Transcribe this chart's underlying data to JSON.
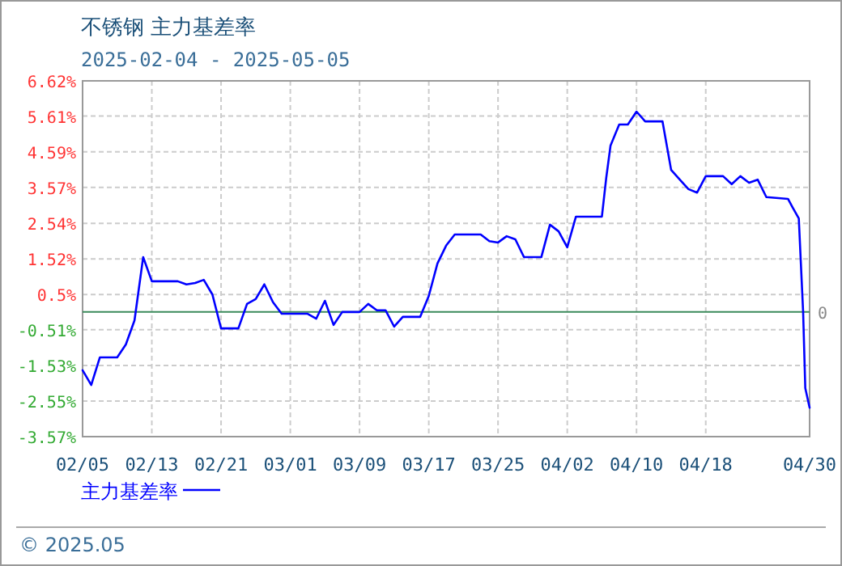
{
  "chart_data": {
    "type": "line",
    "title": "不锈钢 主力基差率",
    "subtitle": "2025-02-04 - 2025-05-05",
    "x": [
      "2025-02-05",
      "2025-02-06",
      "2025-02-07",
      "2025-02-09",
      "2025-02-10",
      "2025-02-11",
      "2025-02-12",
      "2025-02-13",
      "2025-02-16",
      "2025-02-17",
      "2025-02-18",
      "2025-02-19",
      "2025-02-20",
      "2025-02-21",
      "2025-02-23",
      "2025-02-24",
      "2025-02-25",
      "2025-02-26",
      "2025-02-27",
      "2025-02-28",
      "2025-03-02",
      "2025-03-03",
      "2025-03-04",
      "2025-03-05",
      "2025-03-06",
      "2025-03-07",
      "2025-03-09",
      "2025-03-10",
      "2025-03-11",
      "2025-03-12",
      "2025-03-13",
      "2025-03-14",
      "2025-03-16",
      "2025-03-17",
      "2025-03-18",
      "2025-03-19",
      "2025-03-20",
      "2025-03-23",
      "2025-03-24",
      "2025-03-25",
      "2025-03-26",
      "2025-03-27",
      "2025-03-28",
      "2025-03-30",
      "2025-03-31",
      "2025-04-01",
      "2025-04-02",
      "2025-04-03",
      "2025-04-06",
      "2025-04-06T12:00",
      "2025-04-07",
      "2025-04-08",
      "2025-04-09",
      "2025-04-10",
      "2025-04-11",
      "2025-04-13",
      "2025-04-14",
      "2025-04-15",
      "2025-04-16",
      "2025-04-17",
      "2025-04-18",
      "2025-04-20",
      "2025-04-21",
      "2025-04-22",
      "2025-04-23",
      "2025-04-24",
      "2025-04-25",
      "2025-04-27T12:00",
      "2025-04-28",
      "2025-04-28T18:00",
      "2025-04-29T06:00",
      "2025-04-29T12:00",
      "2025-04-30"
    ],
    "series": [
      {
        "name": "主力基差率",
        "color": "#0000ff",
        "values": [
          -1.67,
          -2.09,
          -1.3,
          -1.3,
          -0.93,
          -0.24,
          1.57,
          0.88,
          0.88,
          0.79,
          0.83,
          0.92,
          0.5,
          -0.47,
          -0.47,
          0.23,
          0.37,
          0.79,
          0.28,
          -0.05,
          -0.05,
          -0.05,
          -0.19,
          0.32,
          -0.37,
          0.0,
          0.0,
          0.23,
          0.05,
          0.05,
          -0.42,
          -0.14,
          -0.14,
          0.46,
          1.39,
          1.9,
          2.22,
          2.22,
          2.03,
          1.99,
          2.17,
          2.08,
          1.57,
          1.57,
          2.5,
          2.31,
          1.85,
          2.73,
          2.73,
          3.84,
          4.77,
          5.37,
          5.37,
          5.74,
          5.46,
          5.46,
          4.07,
          3.79,
          3.52,
          3.42,
          3.89,
          3.89,
          3.66,
          3.89,
          3.7,
          3.79,
          3.29,
          3.24,
          3.01,
          2.68,
          0.0,
          -2.18,
          -2.74
        ]
      }
    ],
    "xlim": [
      "2025-02-05",
      "2025-04-30"
    ],
    "xticks": [
      {
        "value": "2025-02-05",
        "label": "02/05"
      },
      {
        "value": "2025-02-13",
        "label": "02/13"
      },
      {
        "value": "2025-02-21",
        "label": "02/21"
      },
      {
        "value": "2025-03-01",
        "label": "03/01"
      },
      {
        "value": "2025-03-09",
        "label": "03/09"
      },
      {
        "value": "2025-03-17",
        "label": "03/17"
      },
      {
        "value": "2025-03-25",
        "label": "03/25"
      },
      {
        "value": "2025-04-02",
        "label": "04/02"
      },
      {
        "value": "2025-04-10",
        "label": "04/10"
      },
      {
        "value": "2025-04-18",
        "label": "04/18"
      },
      {
        "value": "2025-04-30",
        "label": "04/30"
      }
    ],
    "ylim": [
      -3.57,
      6.62
    ],
    "yticks": [
      {
        "value": -3.57,
        "label": "-3.57%"
      },
      {
        "value": -2.55,
        "label": "-2.55%"
      },
      {
        "value": -1.53,
        "label": "-1.53%"
      },
      {
        "value": -0.51,
        "label": "-0.51%"
      },
      {
        "value": 0.5,
        "label": "0.5%"
      },
      {
        "value": 1.52,
        "label": "1.52%"
      },
      {
        "value": 2.54,
        "label": "2.54%"
      },
      {
        "value": 3.57,
        "label": "3.57%"
      },
      {
        "value": 4.59,
        "label": "4.59%"
      },
      {
        "value": 5.61,
        "label": "5.61%"
      },
      {
        "value": 6.62,
        "label": "6.62%"
      }
    ],
    "ref_lines": [
      {
        "axis": "y",
        "value": 0,
        "label": "0",
        "color": "#3a8a5a"
      }
    ],
    "grid": true,
    "legend": "bottom",
    "marker": "none",
    "line_style": "solid",
    "annotations": [
      "© 2025.05"
    ]
  }
}
